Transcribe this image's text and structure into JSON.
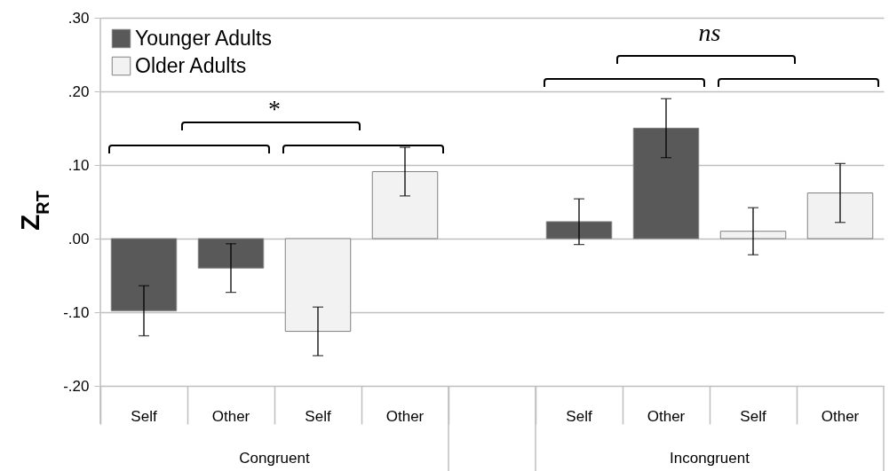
{
  "chart_data": {
    "type": "bar",
    "ylabel": "Z$_{RT}$",
    "categories": [
      "Self",
      "Other",
      "Self",
      "Other",
      null,
      "Self",
      "Other",
      "Self",
      "Other"
    ],
    "series": [
      {
        "name": "Younger Adults",
        "color": "#595959",
        "values": [
          -0.098,
          -0.04,
          null,
          null,
          null,
          0.023,
          0.15,
          null,
          null
        ],
        "errors": [
          0.034,
          0.033,
          null,
          null,
          null,
          0.031,
          0.04,
          null,
          null
        ]
      },
      {
        "name": "Older Adults",
        "color": "#f2f2f2",
        "values": [
          null,
          null,
          -0.126,
          0.091,
          null,
          null,
          null,
          0.01,
          0.062
        ],
        "errors": [
          null,
          null,
          0.033,
          0.033,
          null,
          null,
          null,
          0.032,
          0.04
        ]
      }
    ],
    "ylim": [
      -0.2,
      0.3
    ],
    "yticks": [
      {
        "value": -0.2,
        "label": "-.20"
      },
      {
        "value": -0.1,
        "label": "-.10"
      },
      {
        "value": 0,
        "label": ".00"
      },
      {
        "value": 0.1,
        "label": ".10"
      },
      {
        "value": 0.2,
        "label": ".20"
      },
      {
        "value": 0.3,
        "label": ".30"
      }
    ],
    "grid": "y",
    "legend": "top left",
    "annotations": [
      "*",
      "ns",
      "Congruent",
      "Incongruent"
    ]
  }
}
